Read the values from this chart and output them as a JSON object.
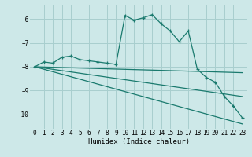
{
  "bg_color": "#cde8e8",
  "grid_color": "#a8cece",
  "line_color": "#1a7a6e",
  "xlabel": "Humidex (Indice chaleur)",
  "xlim": [
    -0.5,
    23.5
  ],
  "ylim": [
    -10.6,
    -5.4
  ],
  "yticks": [
    -10,
    -9,
    -8,
    -7,
    -6
  ],
  "xticks": [
    0,
    1,
    2,
    3,
    4,
    5,
    6,
    7,
    8,
    9,
    10,
    11,
    12,
    13,
    14,
    15,
    16,
    17,
    18,
    19,
    20,
    21,
    22,
    23
  ],
  "xtick_labels": [
    "0",
    "1",
    "2",
    "3",
    "4",
    "5",
    "6",
    "7",
    "8",
    "9",
    "10",
    "11",
    "12",
    "13",
    "14",
    "15",
    "16",
    "17",
    "18",
    "19",
    "20",
    "21",
    "22",
    "23"
  ],
  "series": [
    {
      "x": [
        0,
        1,
        2,
        3,
        4,
        5,
        6,
        7,
        8,
        9,
        10,
        11,
        12,
        13,
        14,
        15,
        16,
        17,
        18,
        19,
        20,
        21,
        22,
        23
      ],
      "y": [
        -8.0,
        -7.8,
        -7.85,
        -7.6,
        -7.55,
        -7.7,
        -7.75,
        -7.8,
        -7.85,
        -7.9,
        -5.85,
        -6.05,
        -5.95,
        -5.82,
        -6.2,
        -6.5,
        -6.95,
        -6.5,
        -8.1,
        -8.45,
        -8.65,
        -9.25,
        -9.65,
        -10.15
      ],
      "marker": "+"
    },
    {
      "x": [
        0,
        23
      ],
      "y": [
        -8.0,
        -8.25
      ],
      "marker": null
    },
    {
      "x": [
        0,
        23
      ],
      "y": [
        -8.0,
        -9.25
      ],
      "marker": null
    },
    {
      "x": [
        0,
        23
      ],
      "y": [
        -8.0,
        -10.4
      ],
      "marker": null
    }
  ]
}
